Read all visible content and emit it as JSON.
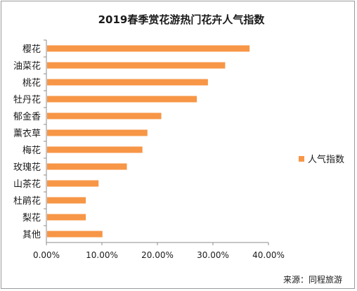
{
  "chart_data": {
    "type": "bar",
    "orientation": "horizontal",
    "title": "2019春季赏花游热门花卉人气指数",
    "categories": [
      "樱花",
      "油菜花",
      "桃花",
      "牡丹花",
      "郁金香",
      "薰衣草",
      "梅花",
      "玫瑰花",
      "山茶花",
      "杜鹃花",
      "梨花",
      "其他"
    ],
    "series": [
      {
        "name": "人气指数",
        "color": "#f79646",
        "values": [
          0.366,
          0.322,
          0.291,
          0.271,
          0.207,
          0.182,
          0.173,
          0.145,
          0.094,
          0.071,
          0.071,
          0.101
        ]
      }
    ],
    "xlim": [
      0,
      0.4
    ],
    "xticks": [
      0,
      0.1,
      0.2,
      0.3,
      0.4
    ],
    "xtick_labels": [
      "0.00%",
      "10.00%",
      "20.00%",
      "30.00%",
      "40.00%"
    ],
    "grid": false,
    "legend_position": "right"
  },
  "source_text": "来源：同程旅游"
}
